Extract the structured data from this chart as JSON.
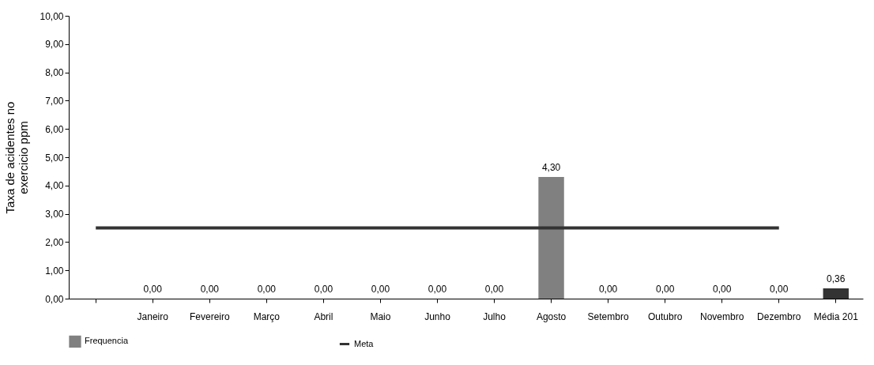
{
  "chart_data": {
    "type": "bar",
    "ylabel": "Taxa de acidentes no exercicio ppm",
    "categories": [
      null,
      "Janeiro",
      "Fevereiro",
      "Março",
      "Abril",
      "Maio",
      "Junho",
      "Julho",
      "Agosto",
      "Setembro",
      "Outubro",
      "Novembro",
      "Dezembro",
      "Média 201"
    ],
    "series": [
      {
        "name": "Frequencia",
        "color": "#808080",
        "colors": [
          null,
          "#808080",
          "#808080",
          "#808080",
          "#808080",
          "#808080",
          "#808080",
          "#808080",
          "#808080",
          "#808080",
          "#808080",
          "#808080",
          "#808080",
          "#333333"
        ],
        "values": [
          null,
          0,
          0,
          0,
          0,
          0,
          0,
          0,
          4.3,
          0,
          0,
          0,
          0,
          0.36
        ],
        "value_labels": [
          null,
          "0,00",
          "0,00",
          "0,00",
          "0,00",
          "0,00",
          "0,00",
          "0,00",
          "4,30",
          "0,00",
          "0,00",
          "0,00",
          "0,00",
          "0,36"
        ]
      },
      {
        "name": "Meta",
        "type": "line",
        "color": "#333333",
        "values": [
          2.5,
          2.5,
          2.5,
          2.5,
          2.5,
          2.5,
          2.5,
          2.5,
          2.5,
          2.5,
          2.5,
          2.5,
          2.5,
          null
        ]
      }
    ],
    "ylim": [
      0,
      10
    ],
    "yticks": [
      {
        "value": 0,
        "label": "0,00"
      },
      {
        "value": 1,
        "label": "1,00"
      },
      {
        "value": 2,
        "label": "2,00"
      },
      {
        "value": 3,
        "label": "3,00"
      },
      {
        "value": 4,
        "label": "4,00"
      },
      {
        "value": 5,
        "label": "5,00"
      },
      {
        "value": 6,
        "label": "6,00"
      },
      {
        "value": 7,
        "label": "7,00"
      },
      {
        "value": 8,
        "label": "8,00"
      },
      {
        "value": 9,
        "label": "9,00"
      },
      {
        "value": 10,
        "label": "10,00"
      }
    ],
    "legend": "bottom"
  }
}
